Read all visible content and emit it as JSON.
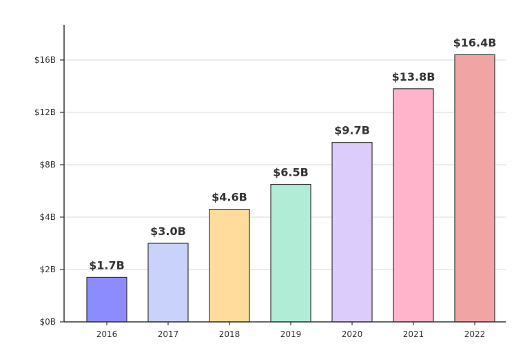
{
  "chart_data": {
    "type": "bar",
    "title": "",
    "xlabel": "",
    "ylabel": "",
    "categories": [
      "2016",
      "2017",
      "2018",
      "2019",
      "2020",
      "2021",
      "2022"
    ],
    "values": [
      1.7,
      3.0,
      4.6,
      6.5,
      9.7,
      13.8,
      16.4
    ],
    "data_labels": [
      "$1.7B",
      "$3.0B",
      "$4.6B",
      "$6.5B",
      "$9.7B",
      "$13.8B",
      "$16.4B"
    ],
    "bar_colors": [
      "#8c8cff",
      "#c8d2fa",
      "#ffdc9c",
      "#b0ecd6",
      "#dcccfc",
      "#ffb4cc",
      "#f0a4a4"
    ],
    "y_ticks": [
      {
        "label": "$0B",
        "value": 0
      },
      {
        "label": "$2B",
        "value": 2
      },
      {
        "label": "$4B",
        "value": 4
      },
      {
        "label": "$8B",
        "value": 8
      },
      {
        "label": "$12B",
        "value": 12
      },
      {
        "label": "$16B",
        "value": 16
      }
    ],
    "grid": true,
    "legend": "none"
  }
}
